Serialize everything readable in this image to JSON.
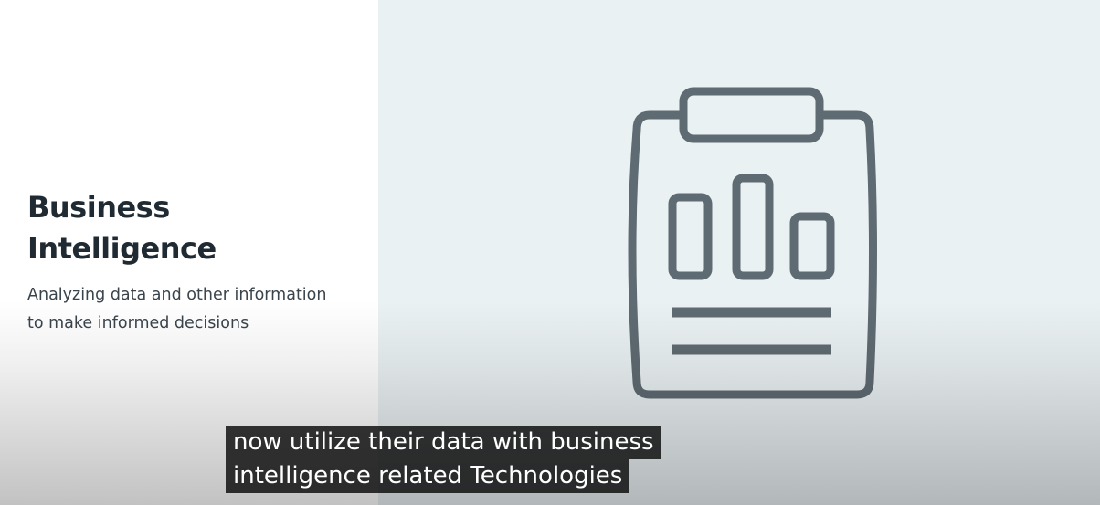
{
  "slide": {
    "title_line1": "Business",
    "title_line2": "Intelligence",
    "subtitle_line1": "Analyzing data and other information",
    "subtitle_line2": "to make informed decisions",
    "icon": "clipboard-bar-chart-icon",
    "colors": {
      "left_background": "#ffffff",
      "right_background": "#eaf1f3",
      "icon_stroke": "#5f6b72",
      "title_text": "#1f2a33"
    }
  },
  "captions": {
    "line1": "now utilize their data with business",
    "line2": "intelligence related Technologies"
  }
}
